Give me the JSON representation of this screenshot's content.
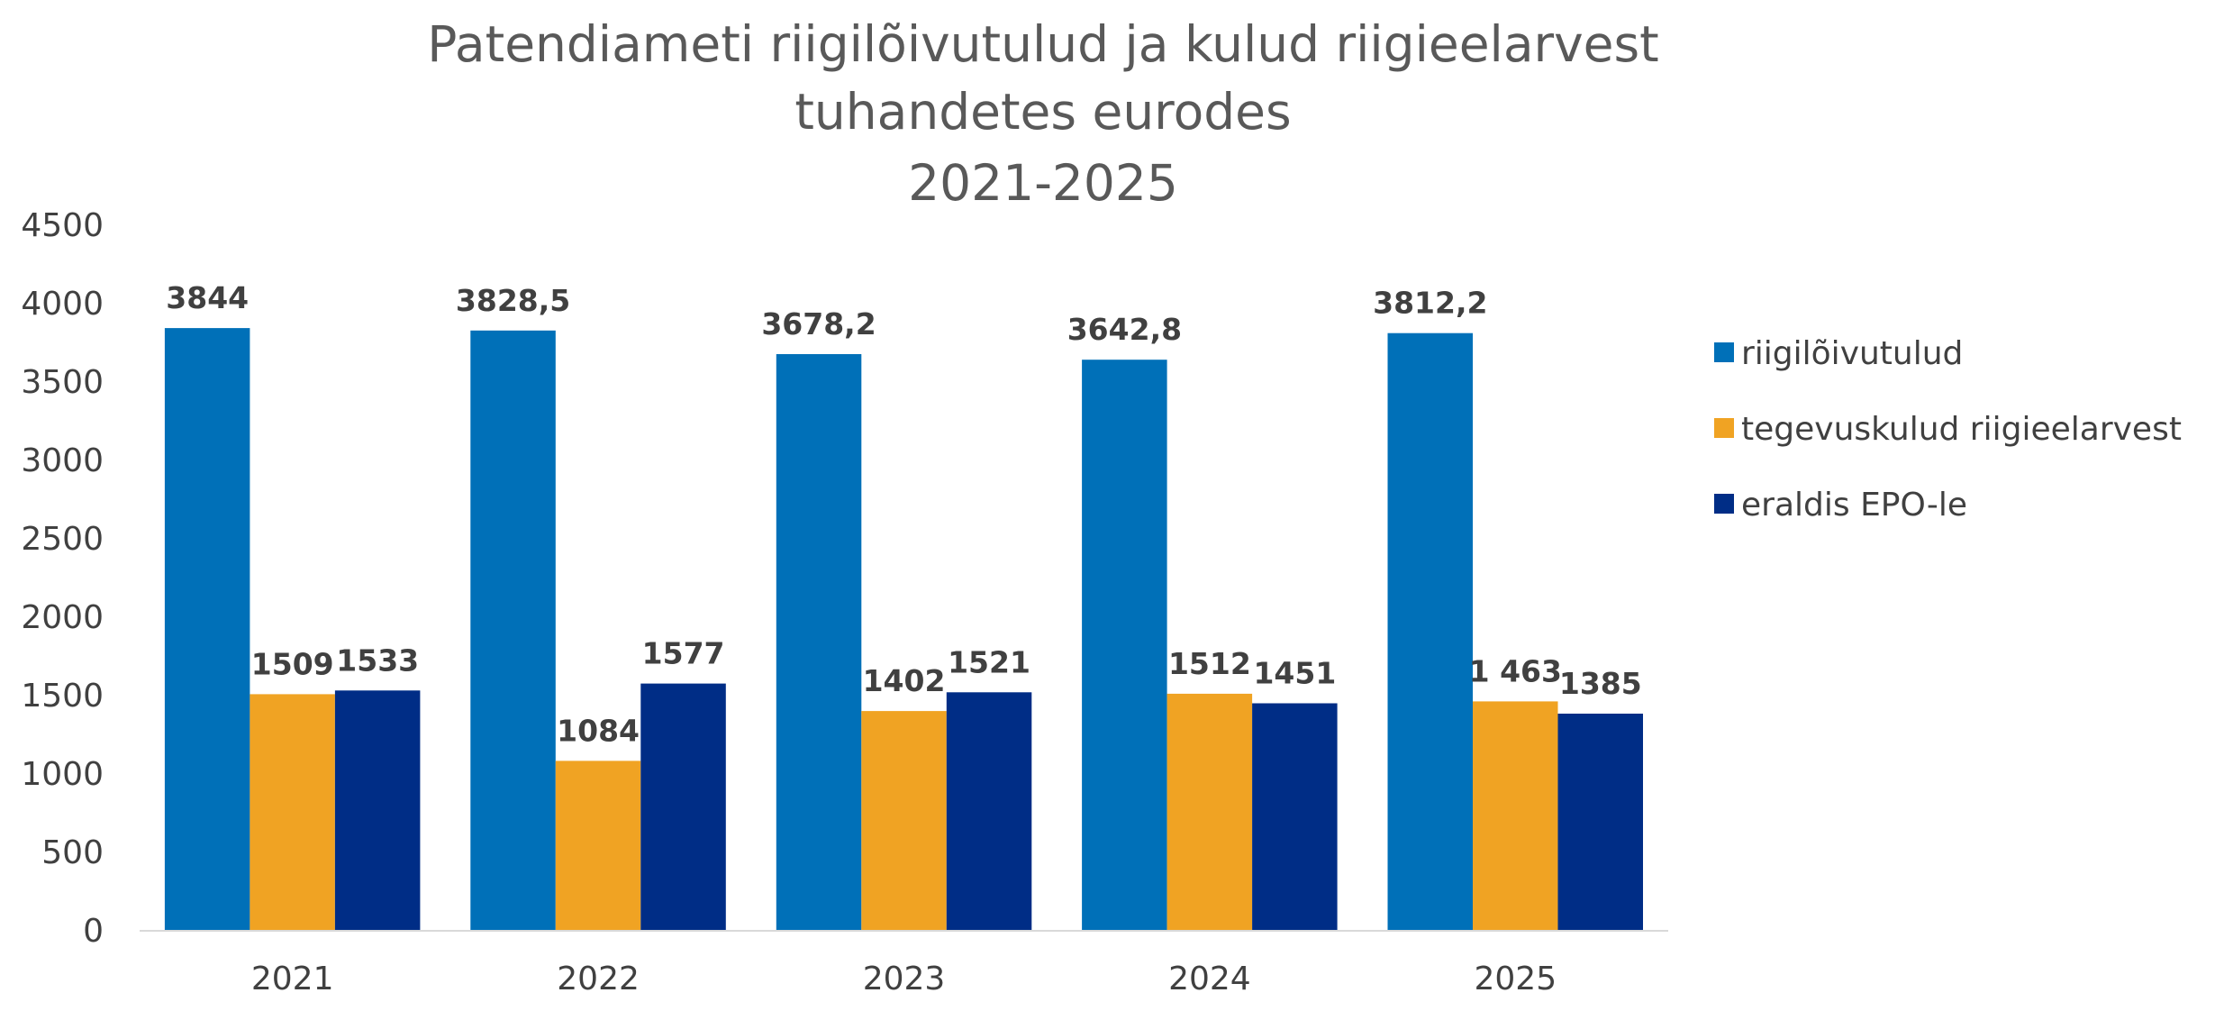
{
  "chart_data": {
    "type": "bar",
    "title_lines": [
      "Patendiameti riigilõivutulud ja kulud riigieelarvest",
      "tuhandetes eurodes",
      "2021-2025"
    ],
    "xlabel": "",
    "ylabel": "",
    "categories": [
      "2021",
      "2022",
      "2023",
      "2024",
      "2025"
    ],
    "ylim": [
      0,
      4500
    ],
    "y_ticks": [
      "0",
      "500",
      "1000",
      "1500",
      "2000",
      "2500",
      "3000",
      "3500",
      "4000",
      "4500"
    ],
    "grid": false,
    "legend_position": "right",
    "series": [
      {
        "name": "riigilõivutulud",
        "color": "#0070B8",
        "values": [
          3844,
          3828.5,
          3678.2,
          3642.8,
          3812.2
        ],
        "labels": [
          "3844",
          "3828,5",
          "3678,2",
          "3642,8",
          "3812,2"
        ]
      },
      {
        "name": "tegevuskulud riigieelarvest",
        "color": "#F0A323",
        "values": [
          1509,
          1084,
          1402,
          1512,
          1463
        ],
        "labels": [
          "1509",
          "1084",
          "1402",
          "1512",
          "1 463"
        ]
      },
      {
        "name": "eraldis EPO-le",
        "color": "#002D86",
        "values": [
          1533,
          1577,
          1521,
          1451,
          1385
        ],
        "labels": [
          "1533",
          "1577",
          "1521",
          "1451",
          "1385"
        ]
      }
    ]
  }
}
